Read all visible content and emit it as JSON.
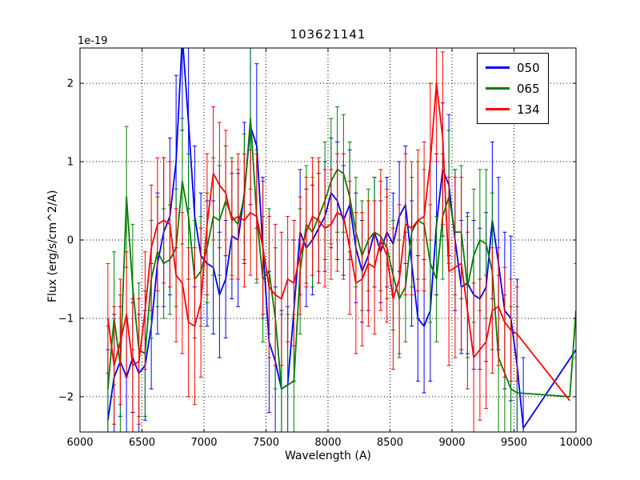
{
  "chart_data": {
    "type": "line",
    "title": "103621141",
    "xlabel": "Wavelength (A)",
    "ylabel": "Flux (erg/s/cm^2/A)",
    "offset_label": "1e-19",
    "xlim": [
      6000,
      10000
    ],
    "ylim": [
      -2.45,
      2.45
    ],
    "xticks": [
      6000,
      6500,
      7000,
      7500,
      8000,
      8500,
      9000,
      9500,
      10000
    ],
    "yticks": [
      -2,
      -1,
      0,
      1,
      2
    ],
    "grid": true,
    "legend": {
      "position": "top-right",
      "entries": [
        "050",
        "065",
        "134"
      ]
    },
    "series": [
      {
        "name": "050",
        "color": "#0000ff",
        "x": [
          6225,
          6275,
          6325,
          6375,
          6425,
          6475,
          6525,
          6575,
          6625,
          6675,
          6725,
          6775,
          6825,
          6875,
          6925,
          6975,
          7025,
          7075,
          7125,
          7175,
          7225,
          7275,
          7325,
          7375,
          7425,
          7475,
          7525,
          7575,
          7625,
          7675,
          7725,
          7775,
          7825,
          7875,
          7925,
          7975,
          8025,
          8075,
          8125,
          8175,
          8225,
          8275,
          8325,
          8375,
          8425,
          8475,
          8525,
          8575,
          8625,
          8675,
          8725,
          8775,
          8825,
          8875,
          8925,
          8975,
          9025,
          9075,
          9125,
          9175,
          9225,
          9275,
          9325,
          9375,
          9425,
          9475,
          9525,
          9575,
          10000
        ],
        "y": [
          -2.3,
          -1.75,
          -1.55,
          -1.75,
          -1.5,
          -1.7,
          -1.6,
          -1.1,
          -0.3,
          0.1,
          0.3,
          1.0,
          2.6,
          1.5,
          0.3,
          -0.2,
          -0.3,
          -0.35,
          -0.7,
          -0.5,
          0.05,
          0.0,
          0.6,
          1.45,
          1.2,
          -0.1,
          -1.3,
          -1.55,
          -1.9,
          -1.85,
          -0.9,
          0.1,
          -0.1,
          0.0,
          0.15,
          0.3,
          0.6,
          0.5,
          0.25,
          0.45,
          -0.1,
          -0.4,
          -0.2,
          0.1,
          -0.15,
          0.1,
          -0.05,
          0.3,
          0.45,
          -0.3,
          -1.0,
          -1.1,
          -0.9,
          0.2,
          0.9,
          0.7,
          0.0,
          -0.6,
          -0.55,
          -0.7,
          -0.75,
          -0.6,
          0.25,
          -0.3,
          -0.9,
          -1.0,
          -1.6,
          -2.4,
          -1.4
        ],
        "yerr": [
          0.9,
          0.8,
          0.7,
          0.75,
          0.7,
          0.75,
          0.7,
          0.8,
          0.9,
          0.95,
          1.0,
          1.1,
          1.2,
          1.1,
          0.9,
          0.8,
          0.8,
          0.85,
          0.8,
          0.75,
          0.8,
          0.85,
          0.9,
          1.0,
          1.05,
          0.9,
          0.9,
          0.95,
          1.0,
          1.0,
          0.9,
          0.8,
          0.75,
          0.7,
          0.7,
          0.7,
          0.7,
          0.75,
          0.7,
          0.7,
          0.7,
          0.65,
          0.7,
          0.7,
          0.65,
          0.7,
          0.65,
          0.7,
          0.75,
          0.8,
          0.8,
          0.85,
          0.9,
          0.9,
          0.85,
          0.9,
          0.9,
          0.85,
          0.9,
          0.95,
          0.9,
          0.95,
          1.0,
          1.1,
          1.0,
          1.05,
          1.1,
          0.9,
          0
        ]
      },
      {
        "name": "065",
        "color": "#008000",
        "x": [
          6225,
          6275,
          6325,
          6375,
          6425,
          6475,
          6525,
          6575,
          6625,
          6675,
          6725,
          6775,
          6825,
          6875,
          6925,
          6975,
          7025,
          7075,
          7125,
          7175,
          7225,
          7275,
          7325,
          7375,
          7425,
          7475,
          7525,
          7575,
          7625,
          7675,
          7725,
          7775,
          7825,
          7875,
          7925,
          7975,
          8025,
          8075,
          8125,
          8175,
          8225,
          8275,
          8325,
          8375,
          8425,
          8475,
          8525,
          8575,
          8625,
          8675,
          8725,
          8775,
          8825,
          8875,
          8925,
          8975,
          9025,
          9075,
          9125,
          9175,
          9225,
          9275,
          9325,
          9375,
          9425,
          9475,
          9525,
          9950,
          10000
        ],
        "y": [
          -1.9,
          -1.0,
          -1.6,
          0.55,
          -0.6,
          -1.4,
          -1.45,
          -0.5,
          -0.15,
          -0.3,
          -0.25,
          -0.1,
          0.75,
          0.3,
          -0.5,
          -0.4,
          -0.1,
          0.3,
          0.25,
          0.5,
          0.3,
          0.2,
          0.55,
          1.55,
          0.3,
          -0.5,
          -0.4,
          -1.0,
          -1.9,
          -1.85,
          -1.8,
          -0.4,
          0.2,
          0.1,
          0.3,
          0.5,
          0.75,
          0.9,
          0.85,
          0.55,
          0.1,
          -0.2,
          0.0,
          0.1,
          0.05,
          -0.1,
          -0.45,
          -0.75,
          -0.6,
          0.1,
          0.25,
          0.2,
          -0.3,
          -0.5,
          0.3,
          0.55,
          0.1,
          0.1,
          -0.6,
          -0.2,
          0.0,
          -0.05,
          -0.4,
          -1.5,
          -1.7,
          -1.9,
          -1.95,
          -2.0,
          -0.9
        ],
        "yerr": [
          0.8,
          0.85,
          0.9,
          0.9,
          0.8,
          0.85,
          0.8,
          0.75,
          0.7,
          0.7,
          0.7,
          0.75,
          0.8,
          0.8,
          0.75,
          0.7,
          0.7,
          0.75,
          0.7,
          0.7,
          0.75,
          0.7,
          0.8,
          0.9,
          0.85,
          0.8,
          0.8,
          0.9,
          0.95,
          0.9,
          0.85,
          0.8,
          0.75,
          0.7,
          0.7,
          0.75,
          0.8,
          0.8,
          0.75,
          0.7,
          0.7,
          0.7,
          0.65,
          0.7,
          0.7,
          0.65,
          0.7,
          0.75,
          0.7,
          0.7,
          0.75,
          0.7,
          0.75,
          0.8,
          0.8,
          0.85,
          0.8,
          0.85,
          0.9,
          0.85,
          0.9,
          0.95,
          1.0,
          1.05,
          1.0,
          1.05,
          1.1,
          0,
          0.6
        ]
      },
      {
        "name": "134",
        "color": "#ff0000",
        "x": [
          6225,
          6275,
          6325,
          6375,
          6425,
          6475,
          6525,
          6575,
          6625,
          6675,
          6725,
          6775,
          6825,
          6875,
          6925,
          6975,
          7025,
          7075,
          7125,
          7175,
          7225,
          7275,
          7325,
          7375,
          7425,
          7475,
          7525,
          7575,
          7625,
          7675,
          7725,
          7775,
          7825,
          7875,
          7925,
          7975,
          8025,
          8075,
          8125,
          8175,
          8225,
          8275,
          8325,
          8375,
          8425,
          8475,
          8525,
          8575,
          8625,
          8675,
          8725,
          8775,
          8825,
          8875,
          8925,
          8975,
          9025,
          9075,
          9125,
          9175,
          9225,
          9275,
          9325,
          9375,
          9425,
          9475,
          9525,
          9950
        ],
        "y": [
          -1.0,
          -1.6,
          -1.3,
          -0.95,
          -1.6,
          -1.55,
          -0.9,
          -0.1,
          0.2,
          0.25,
          0.2,
          -0.45,
          -0.55,
          -1.05,
          -1.1,
          -0.8,
          0.2,
          0.85,
          0.7,
          0.6,
          0.25,
          0.3,
          0.25,
          0.35,
          0.3,
          -0.1,
          -0.6,
          -0.7,
          -0.75,
          -0.5,
          -0.55,
          -0.2,
          0.1,
          0.3,
          0.25,
          0.15,
          0.2,
          0.35,
          0.3,
          -0.1,
          -0.55,
          -0.5,
          -0.3,
          -0.35,
          0.0,
          -0.2,
          -0.75,
          -0.5,
          0.2,
          0.15,
          0.25,
          0.3,
          1.0,
          2.0,
          1.3,
          -0.4,
          -0.35,
          -0.3,
          -0.9,
          -1.5,
          -1.4,
          -1.3,
          -0.9,
          -0.85,
          -1.05,
          -1.15,
          -1.2,
          -2.05
        ],
        "yerr": [
          0.7,
          0.75,
          0.8,
          0.8,
          0.85,
          0.8,
          0.75,
          0.8,
          0.85,
          0.8,
          0.8,
          0.85,
          0.9,
          0.95,
          1.0,
          0.95,
          0.9,
          0.85,
          0.8,
          0.8,
          0.75,
          0.8,
          0.85,
          0.8,
          0.8,
          0.85,
          0.9,
          0.9,
          0.85,
          0.8,
          0.8,
          0.75,
          0.7,
          0.75,
          0.8,
          0.75,
          0.7,
          0.75,
          0.8,
          0.85,
          0.9,
          0.85,
          0.8,
          0.85,
          0.9,
          0.85,
          0.9,
          0.95,
          0.9,
          0.85,
          0.9,
          0.95,
          1.0,
          1.0,
          1.1,
          1.2,
          1.15,
          1.1,
          1.0,
          0.95,
          0.9,
          0.85,
          0.8,
          0.75,
          0.7,
          0.65,
          0.6,
          0
        ]
      }
    ]
  }
}
